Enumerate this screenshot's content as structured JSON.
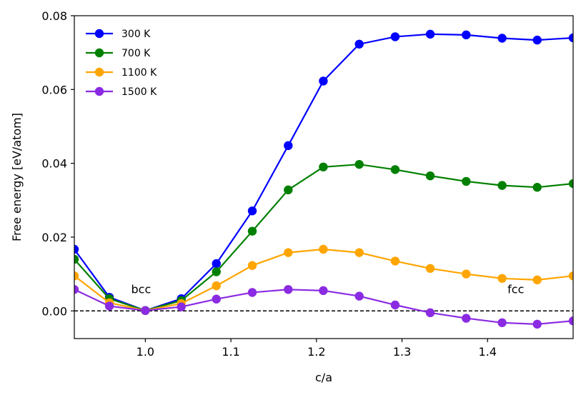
{
  "chart_data": {
    "type": "line",
    "title": "",
    "xlabel": "c/a",
    "ylabel": "Free energy [eV/atom]",
    "xlim": [
      0.917,
      1.5
    ],
    "ylim": [
      -0.0075,
      0.08
    ],
    "xticks": [
      1.0,
      1.1,
      1.2,
      1.3,
      1.4
    ],
    "xtick_labels": [
      "1.0",
      "1.1",
      "1.2",
      "1.3",
      "1.4"
    ],
    "yticks": [
      0.0,
      0.02,
      0.04,
      0.06,
      0.08
    ],
    "ytick_labels": [
      "0.00",
      "0.02",
      "0.04",
      "0.06",
      "0.08"
    ],
    "grid": false,
    "legend_position": "top-left",
    "x": [
      0.917,
      0.958,
      1.0,
      1.042,
      1.083,
      1.125,
      1.167,
      1.208,
      1.25,
      1.292,
      1.333,
      1.375,
      1.417,
      1.458,
      1.5
    ],
    "series": [
      {
        "name": "300 K",
        "color": "#0000ff",
        "values": [
          0.0167,
          0.0037,
          0.0001,
          0.0033,
          0.0128,
          0.0271,
          0.0448,
          0.0623,
          0.0723,
          0.0743,
          0.075,
          0.0748,
          0.0739,
          0.0734,
          0.074
        ]
      },
      {
        "name": "700 K",
        "color": "#008000",
        "values": [
          0.014,
          0.0033,
          0.0001,
          0.0028,
          0.0106,
          0.0216,
          0.0328,
          0.039,
          0.0397,
          0.0383,
          0.0366,
          0.0351,
          0.034,
          0.0335,
          0.0345
        ]
      },
      {
        "name": "1100 K",
        "color": "#ffa500",
        "values": [
          0.0095,
          0.0022,
          0.0001,
          0.002,
          0.0068,
          0.0123,
          0.0158,
          0.0167,
          0.0158,
          0.0135,
          0.0115,
          0.01,
          0.0088,
          0.0084,
          0.0095
        ]
      },
      {
        "name": "1500 K",
        "color": "#8a2be2",
        "values": [
          0.0058,
          0.0013,
          0.0001,
          0.0011,
          0.0032,
          0.005,
          0.0058,
          0.0055,
          0.004,
          0.0016,
          -0.0005,
          -0.002,
          -0.0032,
          -0.0036,
          -0.0027
        ]
      }
    ],
    "reference_line": {
      "y": 0.0,
      "style": "dashed",
      "color": "#000000"
    },
    "annotations": [
      {
        "text": "bcc",
        "x": 0.995,
        "y": 0.0048
      },
      {
        "text": "fcc",
        "x": 1.433,
        "y": 0.0048
      }
    ]
  }
}
